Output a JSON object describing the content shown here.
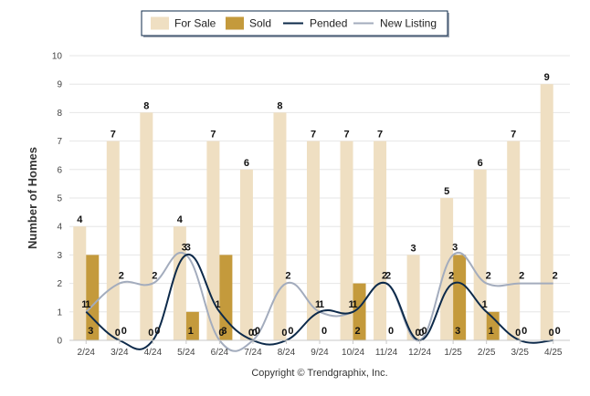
{
  "chart_data": {
    "type": "bar",
    "categories": [
      "2/24",
      "3/24",
      "4/24",
      "5/24",
      "6/24",
      "7/24",
      "8/24",
      "9/24",
      "10/24",
      "11/24",
      "12/24",
      "1/25",
      "2/25",
      "3/25",
      "4/25"
    ],
    "series": [
      {
        "name": "For Sale",
        "kind": "bar",
        "color": "#efdfc2",
        "values": [
          4,
          7,
          8,
          4,
          7,
          6,
          8,
          7,
          7,
          7,
          3,
          5,
          6,
          7,
          9
        ]
      },
      {
        "name": "Sold",
        "kind": "bar",
        "color": "#c49a3c",
        "values": [
          3,
          0,
          0,
          1,
          3,
          0,
          0,
          0,
          2,
          0,
          0,
          3,
          1,
          0,
          0
        ]
      },
      {
        "name": "Pended",
        "kind": "line",
        "color": "#0d2a4a",
        "values": [
          1,
          0,
          0,
          3,
          1,
          0,
          0,
          1,
          1,
          2,
          0,
          2,
          1,
          0,
          0
        ]
      },
      {
        "name": "New Listing",
        "kind": "line",
        "color": "#a3acbd",
        "values": [
          1,
          2,
          2,
          3,
          0,
          0,
          2,
          1,
          1,
          2,
          0,
          3,
          2,
          2,
          2
        ]
      }
    ],
    "ylabel": "Number of Homes",
    "ylim": [
      0,
      10
    ],
    "yticks": [
      0,
      1,
      2,
      3,
      4,
      5,
      6,
      7,
      8,
      9,
      10
    ],
    "grid": true,
    "legend_placement": "top-center",
    "footer": "Copyright © Trendgraphix, Inc."
  }
}
